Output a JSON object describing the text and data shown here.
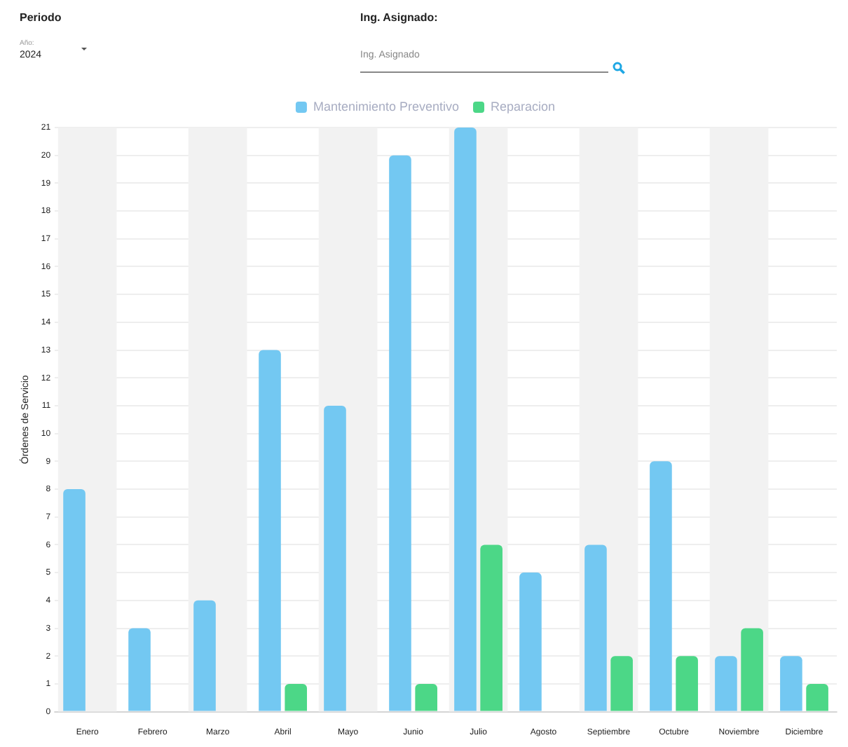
{
  "chart_data": {
    "type": "bar",
    "ylabel": "Órdenes de Servicio",
    "annotations": [
      "Periodo",
      "Año:",
      "2024",
      "Ing. Asignado:",
      "Ing. Asignado"
    ],
    "categories": [
      "Enero",
      "Febrero",
      "Marzo",
      "Abril",
      "Mayo",
      "Junio",
      "Julio",
      "Agosto",
      "Septiembre",
      "Octubre",
      "Noviembre",
      "Diciembre"
    ],
    "series": [
      {
        "name": "Mantenimiento Preventivo",
        "color": "#73c8f2",
        "values": [
          8,
          3,
          4,
          13,
          11,
          20,
          21,
          5,
          6,
          9,
          2,
          2
        ]
      },
      {
        "name": "Reparacion",
        "color": "#4cd787",
        "values": [
          0,
          0,
          0,
          1,
          0,
          1,
          6,
          0,
          2,
          2,
          3,
          1
        ]
      }
    ],
    "ylim": [
      0,
      21
    ],
    "yticks": [
      0,
      1,
      2,
      3,
      4,
      5,
      6,
      7,
      8,
      9,
      10,
      11,
      12,
      13,
      14,
      15,
      16,
      17,
      18,
      19,
      20,
      21
    ],
    "grid": "y",
    "legend": "top"
  }
}
